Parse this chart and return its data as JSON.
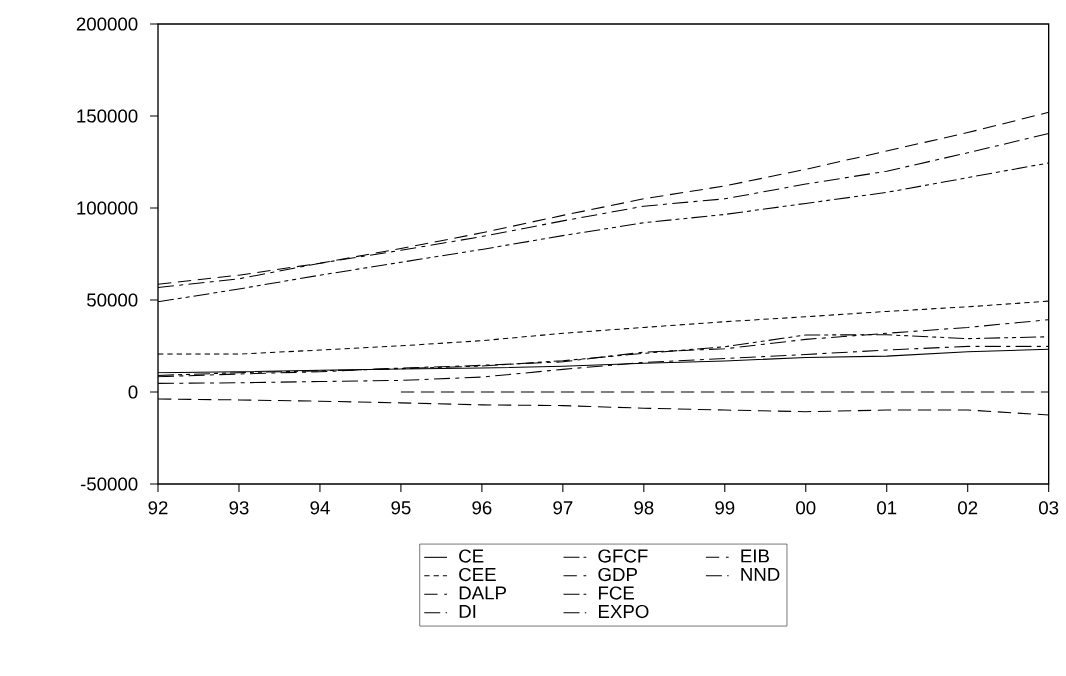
{
  "chart_data": {
    "type": "line",
    "categories": [
      "92",
      "93",
      "94",
      "95",
      "96",
      "97",
      "98",
      "99",
      "00",
      "01",
      "02",
      "03"
    ],
    "ylim": [
      -50000,
      200000
    ],
    "yticks": [
      -50000,
      0,
      50000,
      100000,
      150000,
      200000
    ],
    "legend": "bottom",
    "grid": false,
    "series": [
      {
        "name": "CE",
        "color": "#000000",
        "line_style": "solid",
        "values": [
          10500,
          11000,
          11800,
          12500,
          13000,
          14000,
          15600,
          16800,
          18800,
          19500,
          21900,
          23200
        ]
      },
      {
        "name": "CEE",
        "color": "#000000",
        "line_style": "dashed",
        "values": [
          20600,
          20600,
          22800,
          25100,
          27900,
          31900,
          35100,
          38200,
          40900,
          43800,
          46300,
          49400
        ]
      },
      {
        "name": "DALP",
        "color": "#000000",
        "line_style": "longdash",
        "values": [
          null,
          null,
          null,
          0,
          0,
          0,
          0,
          0,
          0,
          0,
          0,
          0
        ]
      },
      {
        "name": "DI",
        "color": "#000000",
        "line_style": "dashdot",
        "values": [
          56800,
          61500,
          70000,
          77000,
          84500,
          93000,
          101000,
          105000,
          113000,
          120000,
          130000,
          140500
        ]
      },
      {
        "name": "GFCF",
        "color": "#000000",
        "line_style": "dashdotdot",
        "values": [
          9000,
          10500,
          11500,
          12700,
          14100,
          17000,
          21000,
          24600,
          31000,
          31100,
          29000,
          30000
        ]
      },
      {
        "name": "GDP",
        "color": "#000000",
        "line_style": "longdash",
        "values": [
          58600,
          63500,
          70000,
          78000,
          86500,
          96000,
          105000,
          112000,
          121000,
          131000,
          141000,
          152000
        ]
      },
      {
        "name": "FCE",
        "color": "#000000",
        "line_style": "dashdotdot",
        "values": [
          49000,
          56000,
          63500,
          70500,
          77500,
          85000,
          92000,
          96500,
          102500,
          108500,
          116500,
          124500
        ]
      },
      {
        "name": "EXPO",
        "color": "#000000",
        "line_style": "dashdot",
        "values": [
          8300,
          9800,
          11000,
          13000,
          14500,
          16400,
          21700,
          23500,
          28600,
          31900,
          35100,
          39300
        ]
      },
      {
        "name": "EIB",
        "color": "#000000",
        "line_style": "longdash",
        "values": [
          -3800,
          -4300,
          -5000,
          -5900,
          -7000,
          -7400,
          -8800,
          -9800,
          -10700,
          -9800,
          -9800,
          -12500
        ]
      },
      {
        "name": "NND",
        "color": "#000000",
        "line_style": "dashdot",
        "values": [
          4700,
          5000,
          5700,
          6300,
          8100,
          12300,
          16100,
          18200,
          20400,
          22800,
          24800,
          24800
        ]
      }
    ]
  }
}
